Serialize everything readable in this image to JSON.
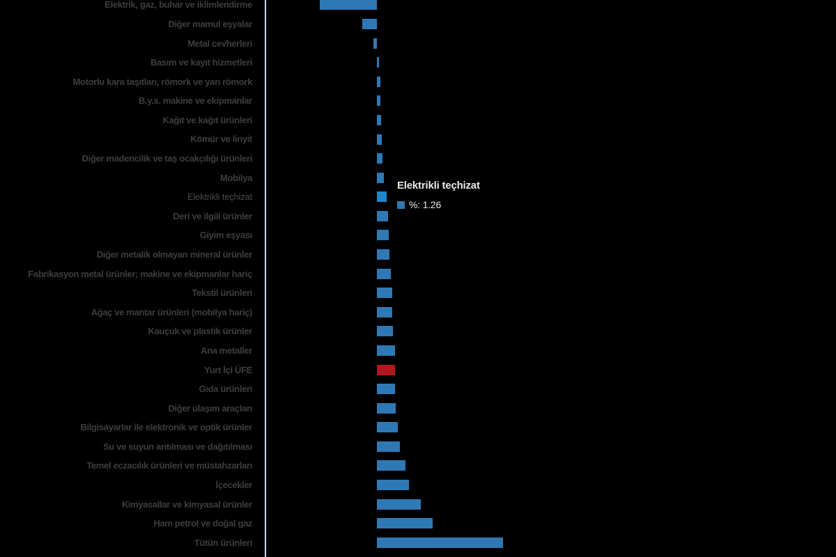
{
  "chart_data": {
    "type": "bar",
    "orientation": "horizontal",
    "title": "",
    "xlabel": "",
    "ylabel": "",
    "unit": "%",
    "series_name": "%",
    "axis_labels_visible": false,
    "grid": false,
    "xlim": [
      -7.5,
      16.5
    ],
    "categories": [
      "Elektrik, gaz, buhar ve iklimlendirme",
      "Diğer mamul eşyalar",
      "Metal cevherleri",
      "Basım ve kayıt hizmetleri",
      "Motorlu kara taşıtları, römork ve yarı römork",
      "B.y.s. makine ve ekipmanlar",
      "Kağıt ve kağıt ürünleri",
      "Kömür ve linyit",
      "Diğer madencilik ve taş ocakçılığı ürünleri",
      "Mobilya",
      "Elektrikli teçhizat",
      "Deri ve ilgili ürünler",
      "Giyim eşyası",
      "Diğer metalik olmayan mineral ürünler",
      "Fabrikasyon metal ürünler; makine ve ekipmanlar hariç",
      "Tekstil ürünleri",
      "Ağaç ve mantar ürünleri (mobilya hariç)",
      "Kauçuk ve plastik ürünler",
      "Ana metaller",
      "Yurt İçi ÜFE",
      "Gıda ürünleri",
      "Diğer ulaşım araçları",
      "Bilgisayarlar ile elektronik ve optik ürünler",
      "Su ve suyun arıtılması ve dağıtılması",
      "Temel eczacılık ürünleri ve müstahzarları",
      "İçecekler",
      "Kimyasallar ve kimyasal ürünler",
      "Ham petrol ve doğal gaz",
      "Tütün ürünleri"
    ],
    "values": [
      -7.19,
      -1.83,
      -0.42,
      0.24,
      0.41,
      0.43,
      0.5,
      0.62,
      0.73,
      0.91,
      1.26,
      1.38,
      1.52,
      1.61,
      1.73,
      1.91,
      1.92,
      2.05,
      2.26,
      2.28,
      2.32,
      2.41,
      2.61,
      2.91,
      3.61,
      4.02,
      5.55,
      7.02,
      15.95
    ],
    "highlight_category": "Yurt İçi ÜFE",
    "hovered_category": "Elektrikli teçhizat",
    "colors": {
      "bar": "#2e79b5",
      "hovered_bar": "#2285ca",
      "highlight_bar": "#b1181d",
      "axis_line": "#ccd6eb",
      "category_label": "#3d3d3d",
      "background": "#000000",
      "tooltip_text": "#e9e9e9"
    }
  },
  "tooltip": {
    "title": "Elektrikli teçhizat",
    "text": "%: 1.26",
    "value": 1.26,
    "marker_color": "#2e79b5"
  }
}
